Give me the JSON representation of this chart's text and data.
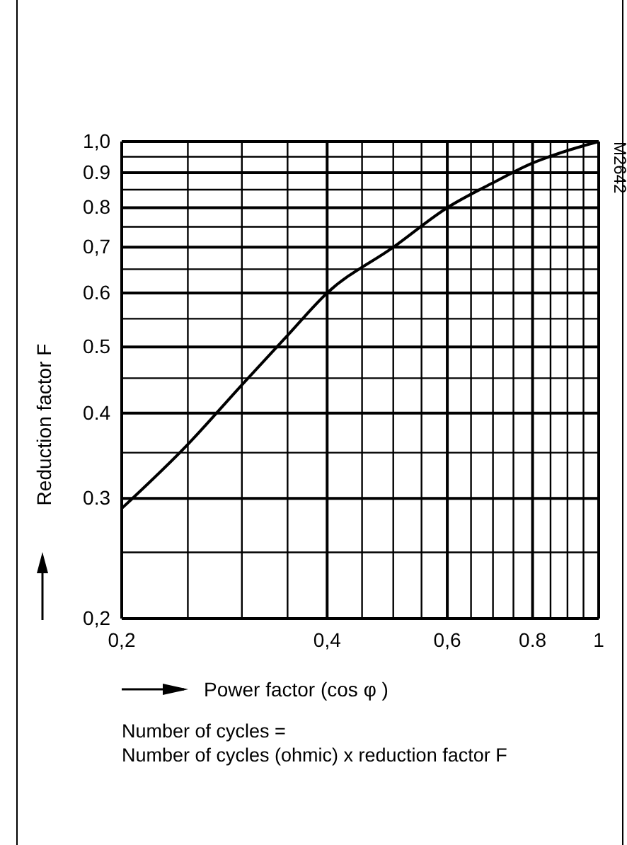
{
  "chart_data": {
    "type": "line",
    "xlabel": "Power factor (cos φ )",
    "ylabel": "Reduction factor F",
    "log": "xy",
    "grid": true,
    "marker": "none",
    "line_style": "solid",
    "xlim": [
      0.2,
      1
    ],
    "ylim": [
      0.2,
      1
    ],
    "xticks": [
      {
        "value": 0.2,
        "label": "0,2"
      },
      {
        "value": 0.25,
        "label": null
      },
      {
        "value": 0.3,
        "label": null
      },
      {
        "value": 0.35,
        "label": null
      },
      {
        "value": 0.4,
        "label": "0,4"
      },
      {
        "value": 0.45,
        "label": null
      },
      {
        "value": 0.5,
        "label": null
      },
      {
        "value": 0.55,
        "label": null
      },
      {
        "value": 0.6,
        "label": "0,6"
      },
      {
        "value": 0.65,
        "label": null
      },
      {
        "value": 0.7,
        "label": null
      },
      {
        "value": 0.75,
        "label": null
      },
      {
        "value": 0.8,
        "label": "0.8"
      },
      {
        "value": 0.85,
        "label": null
      },
      {
        "value": 0.9,
        "label": null
      },
      {
        "value": 0.95,
        "label": null
      },
      {
        "value": 1,
        "label": "1"
      }
    ],
    "yticks": [
      {
        "value": 0.2,
        "label": "0,2"
      },
      {
        "value": 0.25,
        "label": null
      },
      {
        "value": 0.3,
        "label": "0.3"
      },
      {
        "value": 0.35,
        "label": null
      },
      {
        "value": 0.4,
        "label": "0.4"
      },
      {
        "value": 0.45,
        "label": null
      },
      {
        "value": 0.5,
        "label": "0.5"
      },
      {
        "value": 0.55,
        "label": null
      },
      {
        "value": 0.6,
        "label": "0.6"
      },
      {
        "value": 0.65,
        "label": null
      },
      {
        "value": 0.7,
        "label": "0,7"
      },
      {
        "value": 0.75,
        "label": null
      },
      {
        "value": 0.8,
        "label": "0.8"
      },
      {
        "value": 0.85,
        "label": null
      },
      {
        "value": 0.9,
        "label": "0.9"
      },
      {
        "value": 0.95,
        "label": null
      },
      {
        "value": 1,
        "label": "1,0"
      }
    ],
    "series": [
      {
        "color": "#000000",
        "x": [
          0.2,
          0.25,
          0.3,
          0.35,
          0.4,
          0.5,
          0.6,
          0.7,
          0.8,
          0.9,
          1
        ],
        "values": [
          0.29,
          0.36,
          0.44,
          0.52,
          0.6,
          0.7,
          0.8,
          0.87,
          0.93,
          0.97,
          1
        ]
      }
    ],
    "annotations": [
      "M2642",
      "Number of cycles =",
      "Number of cycles (ohmic) x reduction factor F"
    ]
  }
}
